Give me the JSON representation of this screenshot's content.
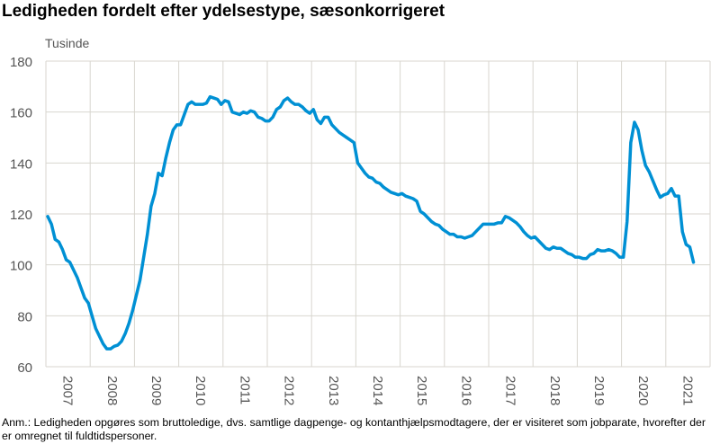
{
  "chart_data": {
    "type": "line",
    "title": "Ledigheden fordelt efter ydelsestype, sæsonkorrigeret",
    "ylabel": "Tusinde",
    "xlabel": "",
    "ylim": [
      60,
      180
    ],
    "yticks": [
      60,
      80,
      100,
      120,
      140,
      160,
      180
    ],
    "xticks": [
      "2007",
      "2008",
      "2009",
      "2010",
      "2011",
      "2012",
      "2013",
      "2014",
      "2015",
      "2016",
      "2017",
      "2018",
      "2019",
      "2020",
      "2021"
    ],
    "grid": true,
    "legend": "none",
    "x_start": "2007-01",
    "frequency": "monthly",
    "series": [
      {
        "color": "#0090d4",
        "values": [
          119,
          116,
          110,
          109,
          106,
          102,
          101,
          98,
          95,
          91,
          87,
          85,
          80,
          75,
          72,
          69,
          67,
          67,
          68,
          68.5,
          70,
          73,
          77,
          82,
          88,
          94,
          103,
          112,
          123,
          128,
          136,
          135,
          142,
          148,
          153,
          155,
          155,
          159,
          163,
          164,
          163,
          163,
          163,
          163.5,
          166,
          165.5,
          165,
          163,
          164.5,
          164,
          160,
          159.5,
          159,
          160,
          159.5,
          160.5,
          160,
          158,
          157.5,
          156.5,
          156.5,
          158,
          161,
          162,
          164.5,
          165.5,
          164,
          163,
          163,
          162,
          160.5,
          159.5,
          161,
          157,
          155.5,
          158,
          158,
          155,
          153.5,
          152,
          151,
          150,
          149,
          148,
          140,
          138,
          136,
          134.5,
          134,
          132.5,
          132,
          130.5,
          129.5,
          128.5,
          128,
          127.5,
          128,
          127,
          126.5,
          126,
          125,
          121,
          120,
          118.5,
          117,
          116,
          115.5,
          114,
          113,
          112,
          112,
          111,
          111,
          110.5,
          111,
          111.5,
          113,
          114.5,
          116,
          116,
          116,
          116,
          116.5,
          116.5,
          119,
          118.5,
          117.5,
          116.5,
          115,
          113,
          111.5,
          110.5,
          111,
          109.5,
          108,
          106.5,
          106,
          107,
          106.5,
          106.5,
          105.5,
          104.5,
          104,
          103,
          103,
          102.5,
          102.5,
          104,
          104.5,
          106,
          105.5,
          105.5,
          106,
          105.5,
          104.5,
          103,
          103,
          117,
          148,
          156,
          153,
          145,
          139,
          136.5,
          133,
          129.5,
          126.5,
          127.5,
          128,
          130,
          127,
          127,
          113,
          108,
          107,
          101
        ]
      }
    ]
  },
  "note": "Anm.: Ledigheden opgøres som bruttoledige, dvs. samtlige dagpenge- og kontanthjælpsmodtagere, der er visiteret som jobparate, hvorefter der er omregnet til fuldtidspersoner."
}
